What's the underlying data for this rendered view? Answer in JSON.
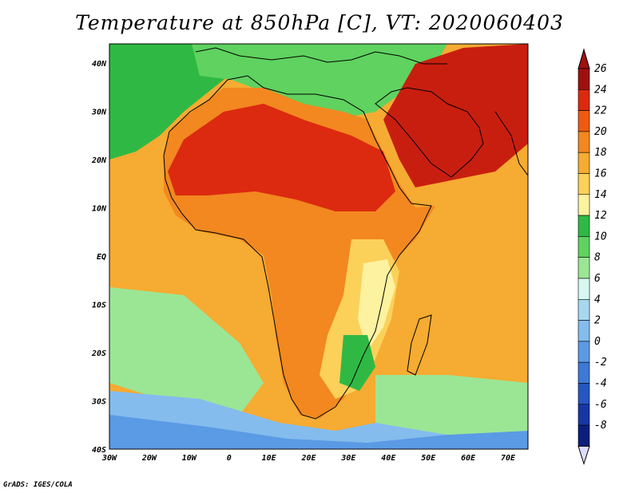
{
  "title": "Temperature at 850hPa [C], VT: 2020060403",
  "credit": "GrADS: IGES/COLA",
  "map": {
    "lon_labels": [
      "30W",
      "20W",
      "10W",
      "0",
      "10E",
      "20E",
      "30E",
      "40E",
      "50E",
      "60E",
      "70E"
    ],
    "lat_labels": [
      "40N",
      "30N",
      "20N",
      "10N",
      "EQ",
      "10S",
      "20S",
      "30S",
      "40S"
    ],
    "lon_range": [
      -30,
      75
    ],
    "lat_range": [
      -40,
      44
    ]
  },
  "colorbar": {
    "levels": [
      "26",
      "24",
      "22",
      "20",
      "18",
      "16",
      "14",
      "12",
      "10",
      "8",
      "6",
      "4",
      "2",
      "0",
      "-2",
      "-4",
      "-6",
      "-8"
    ],
    "colors": [
      "#a01010",
      "#dc2a10",
      "#ee5a12",
      "#f2881f",
      "#f6ab32",
      "#fbd15a",
      "#fdf2a0",
      "#2fb944",
      "#5fd25f",
      "#9be695",
      "#d7f8f0",
      "#a8d8f0",
      "#84bcee",
      "#5b9ae4",
      "#3d79d6",
      "#2656c2",
      "#1636a4",
      "#0b1e7c"
    ],
    "under_color": "#dcdcff",
    "over_color": "#a01010"
  },
  "palette": {
    "ocean_warm": "#f6ab32",
    "land_hot": "#dc2a10",
    "land_very_hot": "#c81e10",
    "mediterranean": "#5fd25f",
    "atlantic_north": "#2fb944",
    "southern_ocean": "#84bcee",
    "southern_cold": "#5b9ae4",
    "southern_mid": "#9be695",
    "yellow": "#fbd15a",
    "pale": "#fdf2a0",
    "orange": "#f2881f",
    "coast": "#000000"
  }
}
